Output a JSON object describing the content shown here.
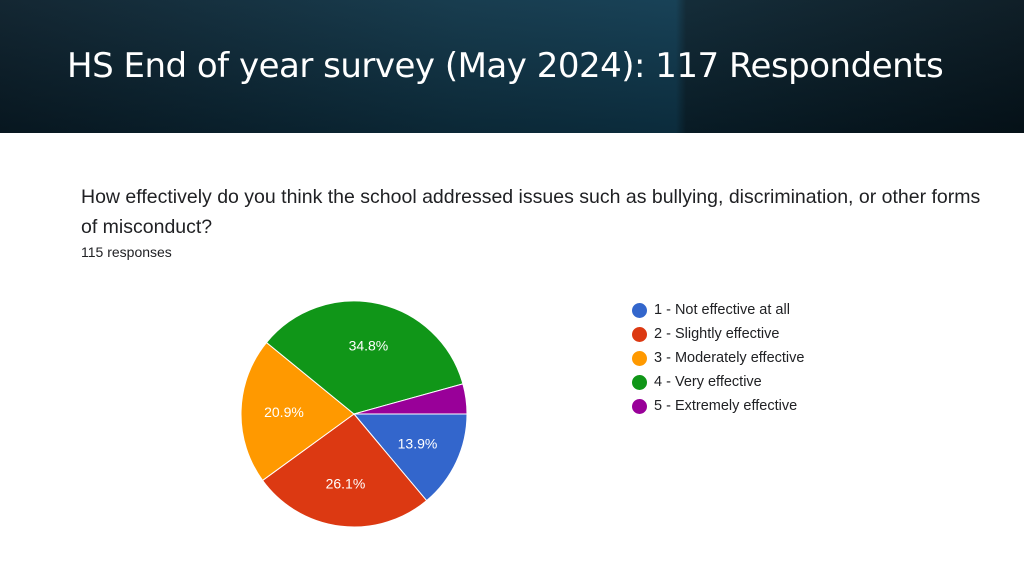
{
  "slide": {
    "title": "HS End of year survey (May 2024):  117 Respondents"
  },
  "question": {
    "text": "How effectively do you think the school addressed issues such as bullying, discrimination, or other forms of misconduct?",
    "responses": "115 responses"
  },
  "chart_data": {
    "type": "pie",
    "categories": [
      "1 - Not effective at all",
      "2 - Slightly effective",
      "3 - Moderately effective",
      "4 - Very effective",
      "5 - Extremely effective"
    ],
    "values": [
      13.9,
      26.1,
      20.9,
      34.8,
      4.3
    ],
    "labels": [
      "13.9%",
      "26.1%",
      "20.9%",
      "34.8%",
      ""
    ],
    "colors": [
      "#3366cc",
      "#dc3912",
      "#ff9900",
      "#109618",
      "#990099"
    ],
    "legend_position": "right"
  }
}
